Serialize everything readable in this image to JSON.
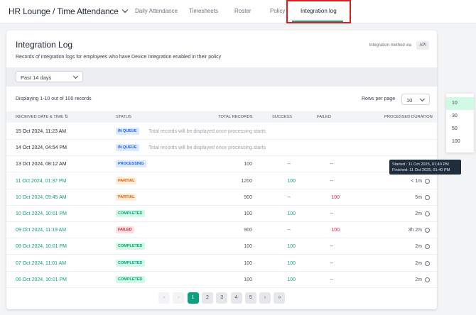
{
  "header": {
    "breadcrumb": "HR Lounge  /  Time Attendance",
    "tabs": [
      "Daily Attendance",
      "Timesheets",
      "Roster",
      "Policy",
      "Integration log"
    ],
    "active_tab": "Integration log"
  },
  "card": {
    "title": "Integration Log",
    "description": "Records of integration logs for employees who have Device Integration enabled in their policy",
    "method_label": "Integration method via",
    "method": "API"
  },
  "filter": {
    "period": "Past 14 days"
  },
  "summary": "Displaying 1-10 out of 100 records",
  "rows_per_page": {
    "label": "Rows per page",
    "value": "10",
    "options": [
      "10",
      "30",
      "50",
      "100"
    ]
  },
  "table": {
    "columns": [
      "RECEIVED DATE & TIME",
      "STATUS",
      "TOTAL RECORDS",
      "SUCCESS",
      "FAILED",
      "PROCESSED DURATION"
    ],
    "rows": [
      {
        "date": "15 Oct 2024, 11:23 AM",
        "status": "IN QUEUE",
        "note": "Total records will be displayed once processing starts"
      },
      {
        "date": "14 Oct 2024, 04:54 PM",
        "status": "IN QUEUE",
        "note": "Total records will be displayed once processing starts"
      },
      {
        "date": "13 Oct 2024, 08:12 AM",
        "status": "PROCESSING",
        "total": "100",
        "success": "--",
        "failed": "--",
        "duration": ""
      },
      {
        "date": "11 Oct 2024, 01:37 PM",
        "status": "PARTIAL",
        "total": "1200",
        "success": "100",
        "failed": "--",
        "duration": "< 1m"
      },
      {
        "date": "10 Oct 2024, 09:45 AM",
        "status": "PARTIAL",
        "total": "900",
        "success": "--",
        "failed": "100",
        "duration": "5m"
      },
      {
        "date": "10 Oct 2024, 10:01 PM",
        "status": "COMPLETED",
        "total": "100",
        "success": "100",
        "failed": "--",
        "duration": "2m"
      },
      {
        "date": "09 Oct 2024, 11:19 AM",
        "status": "FAILED",
        "total": "900",
        "success": "--",
        "failed": "100",
        "duration": "3h 2m"
      },
      {
        "date": "08 Oct 2024, 10:01 PM",
        "status": "COMPLETED",
        "total": "100",
        "success": "100",
        "failed": "--",
        "duration": "2m"
      },
      {
        "date": "07 Oct 2024, 11:01 AM",
        "status": "COMPLETED",
        "total": "100",
        "success": "100",
        "failed": "--",
        "duration": "2m"
      },
      {
        "date": "06 Oct 2024, 10:01 PM",
        "status": "COMPLETED",
        "total": "100",
        "success": "100",
        "failed": "--",
        "duration": "2m"
      }
    ]
  },
  "tooltip": {
    "started": "Started : 11 Oct 2025, 01:40 PM",
    "finished": "Finished: 11 Oct 2025, 01:40 PM"
  },
  "pagination": {
    "first": "«",
    "prev": "‹",
    "pages": [
      "1",
      "2",
      "3",
      "4",
      "5"
    ],
    "current": "1",
    "next": "›",
    "last": "»"
  },
  "colors": {
    "accent": "#0e9f7e",
    "failed": "#e11d48",
    "partial": "#ea580c",
    "queue": "#2563eb",
    "highlight": "#e11d1d"
  }
}
